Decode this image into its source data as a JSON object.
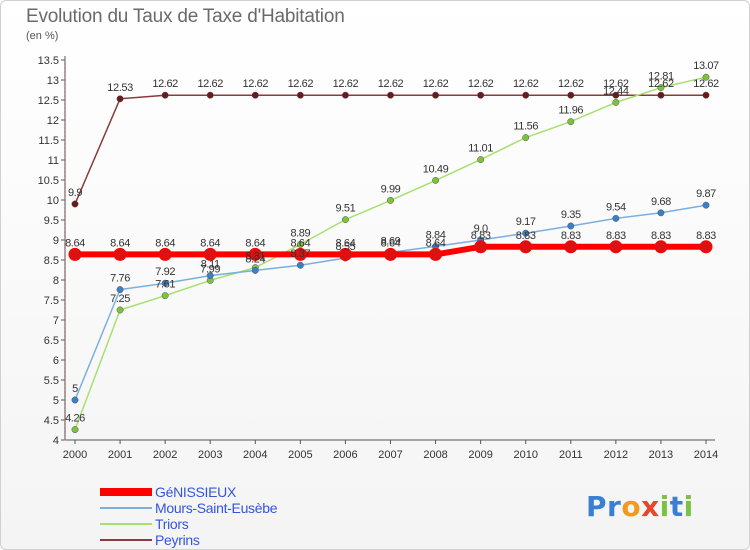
{
  "header": {
    "title": "Evolution du Taux de Taxe d'Habitation",
    "subtitle": "(en %)"
  },
  "logo": {
    "letters": [
      {
        "char": "P",
        "color": "#3a7fd5"
      },
      {
        "char": "r",
        "color": "#3a7fd5"
      },
      {
        "char": "o",
        "color": "#f29a1b"
      },
      {
        "char": "x",
        "color": "#e8452a"
      },
      {
        "char": "i",
        "color": "#7cc242"
      },
      {
        "char": "t",
        "color": "#3a7fd5"
      },
      {
        "char": "i",
        "color": "#7cc242"
      }
    ]
  },
  "chart_data": {
    "type": "line",
    "title": "Evolution du Taux de Taxe d'Habitation",
    "subtitle": "(en %)",
    "xlabel": "",
    "ylabel": "",
    "x": [
      "2000",
      "2001",
      "2002",
      "2003",
      "2004",
      "2005",
      "2006",
      "2007",
      "2008",
      "2009",
      "2010",
      "2011",
      "2012",
      "2013",
      "2014"
    ],
    "ylim": [
      4,
      13.5
    ],
    "yticks": [
      "4",
      "4.5",
      "5",
      "5.5",
      "6",
      "6.5",
      "7",
      "7.5",
      "8",
      "8.5",
      "9",
      "9.5",
      "10",
      "10.5",
      "11",
      "11.5",
      "12",
      "12.5",
      "13",
      "13.5"
    ],
    "grid": false,
    "legend_position": "bottom-left",
    "series": [
      {
        "name": "GéNISSIEUX",
        "color": "#ff0000",
        "marker_color": "#dd1111",
        "width": 6,
        "values": [
          8.64,
          8.64,
          8.64,
          8.64,
          8.64,
          8.64,
          8.64,
          8.64,
          8.64,
          8.83,
          8.83,
          8.83,
          8.83,
          8.83,
          8.83
        ],
        "labels": [
          "8.64",
          "8.64",
          "8.64",
          "8.64",
          "8.64",
          "8.64",
          "8.64",
          "8.64",
          "8.64",
          "8.83",
          "8.83",
          "8.83",
          "8.83",
          "8.83",
          "8.83"
        ]
      },
      {
        "name": "Mours-Saint-Eusèbe",
        "color": "#7ab0e0",
        "marker_color": "#3a7fc8",
        "width": 1.5,
        "values": [
          5,
          7.76,
          7.92,
          8.11,
          8.24,
          8.37,
          8.55,
          8.69,
          8.84,
          9.0,
          9.17,
          9.35,
          9.54,
          9.68,
          9.87
        ],
        "labels": [
          "5",
          "7.76",
          "7.92",
          "8.11",
          "8.24",
          "8.37",
          "8.55",
          "8.69",
          "8.84",
          "9.0",
          "9.17",
          "9.35",
          "9.54",
          "9.68",
          "9.87"
        ]
      },
      {
        "name": "Triors",
        "color": "#a8e070",
        "marker_color": "#7cc23a",
        "width": 1.5,
        "values": [
          4.26,
          7.25,
          7.61,
          7.99,
          8.31,
          8.89,
          9.51,
          9.99,
          10.49,
          11.01,
          11.56,
          11.96,
          12.44,
          12.81,
          13.07
        ],
        "labels": [
          "4.26",
          "7.25",
          "7.61",
          "7.99",
          "8.31",
          "8.89",
          "9.51",
          "9.99",
          "10.49",
          "11.01",
          "11.56",
          "11.96",
          "12.44",
          "12.81",
          "13.07"
        ]
      },
      {
        "name": "Peyrins",
        "color": "#8a3a3a",
        "marker_color": "#6a1a1a",
        "width": 1.5,
        "values": [
          9.9,
          12.53,
          12.62,
          12.62,
          12.62,
          12.62,
          12.62,
          12.62,
          12.62,
          12.62,
          12.62,
          12.62,
          12.62,
          12.62,
          12.62
        ],
        "labels": [
          "9.9",
          "12.53",
          "12.62",
          "12.62",
          "12.62",
          "12.62",
          "12.62",
          "12.62",
          "12.62",
          "12.62",
          "12.62",
          "12.62",
          "12.62",
          "12.62",
          "12.62"
        ]
      }
    ]
  }
}
